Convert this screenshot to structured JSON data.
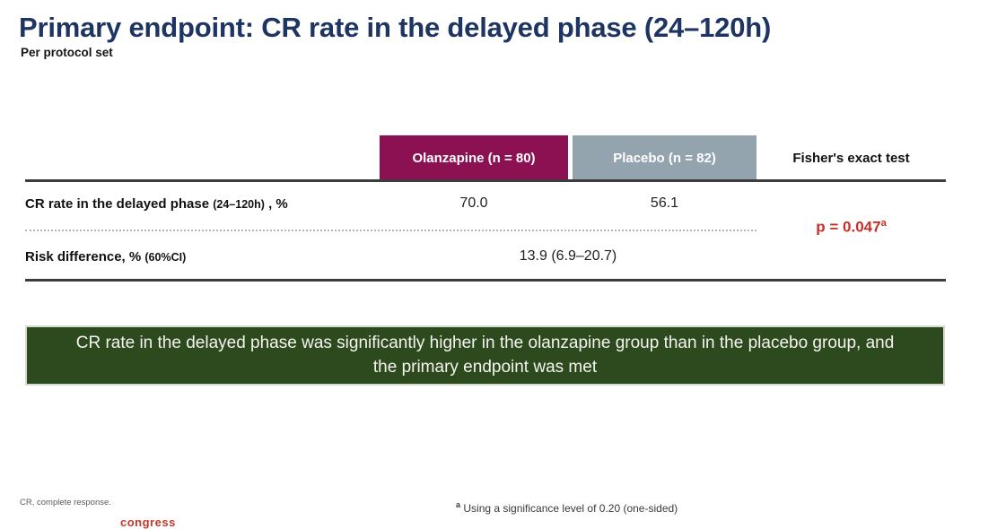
{
  "slide": {
    "title": "Primary endpoint: CR rate in the delayed phase (24–120h)",
    "subtitle": "Per protocol set"
  },
  "table": {
    "columns": {
      "olanzapine": "Olanzapine (n = 80)",
      "placebo": "Placebo (n = 82)",
      "fisher": "Fisher's exact test"
    },
    "rows": {
      "cr_rate": {
        "label_main": "CR rate in the delayed phase ",
        "label_small": "(24–120h)",
        "label_suffix": " , %",
        "olanzapine": "70.0",
        "placebo": "56.1"
      },
      "risk_difference": {
        "label_main": "Risk difference, % ",
        "label_small": "(60%CI)",
        "combined": "13.9 (6.9–20.7)"
      }
    },
    "p_value": {
      "text": "p = 0.047",
      "sup": "a"
    }
  },
  "banner": {
    "text": "CR rate in the delayed phase was significantly higher in the olanzapine group than in the placebo group, and the primary endpoint was met"
  },
  "footnotes": {
    "abbrev": "CR, complete response.",
    "sig_sup": "a",
    "sig_text": "Using a significance level of 0.20 (one-sided)",
    "congress_partial": "congress"
  },
  "colors": {
    "title_navy": "#1e3563",
    "olanzapine_maroon": "#8c1152",
    "placebo_gray": "#93a4ae",
    "banner_green": "#2d4a1e",
    "p_value_red": "#c62f27",
    "rule_dark": "#3d3d3d"
  }
}
